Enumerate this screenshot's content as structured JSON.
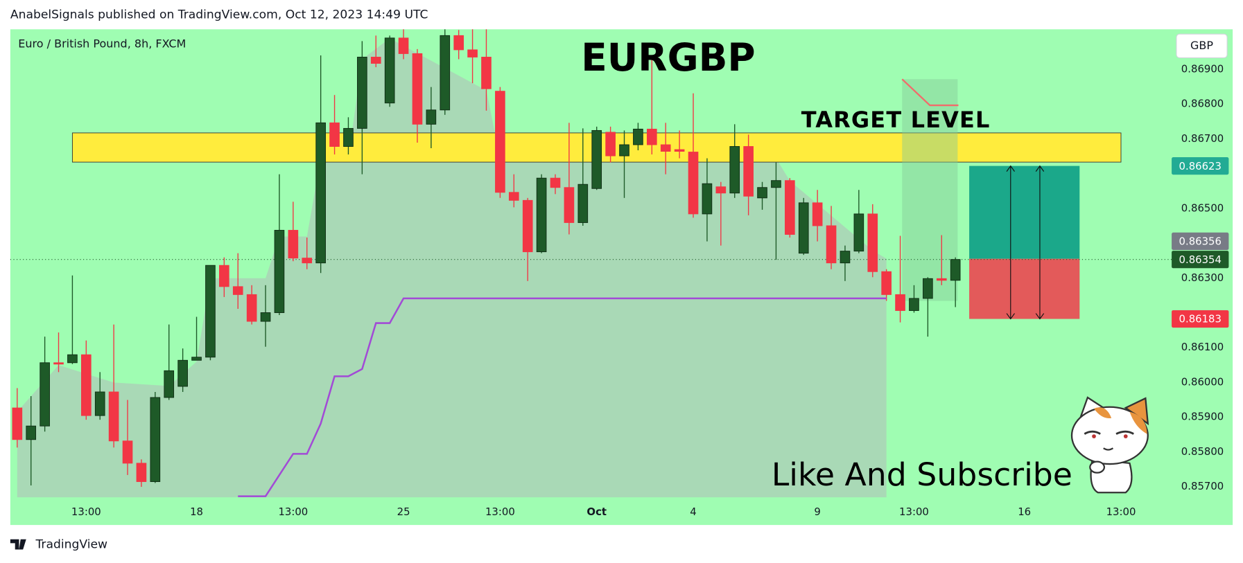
{
  "header": "AnabelSignals published on TradingView.com, Oct 12, 2023 14:49 UTC",
  "footer": "TradingView",
  "chart_data": {
    "type": "candlestick",
    "title": "EURGBP",
    "subtitle": "Euro / British Pound, 8h, FXCM",
    "currency": "GBP",
    "annotations": [
      "TARGET LEVEL",
      "Like And Subscribe"
    ],
    "categories": [
      null,
      null,
      null,
      null,
      null,
      "13:00",
      null,
      null,
      null,
      null,
      null,
      null,
      null,
      "18",
      null,
      null,
      null,
      null,
      null,
      null,
      "13:00",
      null,
      null,
      null,
      null,
      null,
      null,
      null,
      "25",
      null,
      null,
      null,
      null,
      null,
      null,
      "13:00",
      null,
      null,
      null,
      null,
      null,
      null,
      "Oct",
      null,
      null,
      null,
      null,
      null,
      null,
      "4",
      null,
      null,
      null,
      null,
      null,
      null,
      null,
      null,
      "9",
      null,
      null,
      null,
      null,
      null,
      null,
      "13:00",
      null,
      null,
      null,
      null,
      null,
      null,
      null,
      "16",
      null,
      null,
      null,
      null,
      null,
      null,
      "13:00",
      null,
      null,
      null
    ],
    "open": [
      0.85927,
      0.85836,
      0.85875,
      0.86057,
      0.86057,
      0.8608,
      0.85905,
      0.85973,
      0.85832,
      0.85768,
      0.85715,
      0.85957,
      0.85989,
      0.86064,
      0.86073,
      0.86337,
      0.86276,
      0.86253,
      0.86176,
      0.86201,
      0.86438,
      0.86358,
      0.86344,
      0.86747,
      0.86679,
      0.86731,
      0.86936,
      0.86804,
      0.86991,
      0.86946,
      0.86743,
      0.86784,
      0.86998,
      0.86957,
      0.86936,
      0.86838,
      0.86547,
      0.86524,
      0.86376,
      0.86588,
      0.86561,
      0.8646,
      0.86558,
      0.8672,
      0.86652,
      0.86684,
      0.86729,
      0.86684,
      0.8667,
      0.86663,
      0.86485,
      0.86563,
      0.86545,
      0.86679,
      0.86531,
      0.86561,
      0.86581,
      0.86372,
      0.86517,
      0.86451,
      0.86344,
      0.86378,
      0.86485,
      0.86319,
      0.86253,
      0.86207,
      0.86242,
      0.86299,
      0.86294,
      null,
      null,
      null,
      null,
      null,
      null,
      null,
      null,
      null,
      null,
      null,
      null,
      null,
      null,
      null
    ],
    "high": [
      0.85984,
      0.85961,
      0.86132,
      0.86144,
      0.86308,
      0.86121,
      0.8603,
      0.86167,
      0.8595,
      0.85779,
      0.85973,
      0.86167,
      0.86098,
      0.86189,
      0.86337,
      0.8636,
      0.86372,
      0.8628,
      0.8628,
      0.86599,
      0.8652,
      0.86417,
      0.86941,
      0.86827,
      0.86763,
      0.86982,
      0.86998,
      0.86998,
      0.87016,
      0.86959,
      0.8685,
      0.87016,
      0.87014,
      0.87016,
      0.87016,
      0.8685,
      0.86599,
      0.86531,
      0.86599,
      0.86599,
      0.86747,
      0.86731,
      0.86736,
      0.86736,
      0.86725,
      0.86747,
      0.86936,
      0.86747,
      0.86725,
      0.86832,
      0.86645,
      0.86577,
      0.86743,
      0.86713,
      0.86577,
      0.86633,
      0.86588,
      0.86531,
      0.86554,
      0.86508,
      0.86394,
      0.86554,
      0.86513,
      0.86326,
      0.86422,
      0.8628,
      0.86303,
      0.86424,
      0.8636,
      null,
      null,
      null,
      null,
      null,
      null,
      null,
      null,
      null,
      null,
      null,
      null,
      null,
      null,
      null
    ],
    "low": [
      0.85813,
      0.85704,
      0.85859,
      0.8603,
      0.86053,
      0.85893,
      0.85893,
      0.85813,
      0.85734,
      0.857,
      0.85711,
      0.8595,
      0.85973,
      0.86064,
      0.86064,
      0.86246,
      0.86212,
      0.86167,
      0.86103,
      0.86194,
      0.86349,
      0.86326,
      0.86315,
      0.86656,
      0.86656,
      0.86599,
      0.86907,
      0.86793,
      0.8693,
      0.8669,
      0.86674,
      0.8677,
      0.8693,
      0.86861,
      0.86782,
      0.86531,
      0.86504,
      0.86292,
      0.86372,
      0.86542,
      0.86426,
      0.86451,
      0.86554,
      0.86633,
      0.86531,
      0.86668,
      0.86656,
      0.86599,
      0.86645,
      0.86474,
      0.86406,
      0.86394,
      0.86531,
      0.86481,
      0.86497,
      0.86353,
      0.86417,
      0.86367,
      0.86406,
      0.86326,
      0.86292,
      0.86372,
      0.86303,
      0.86235,
      0.86173,
      0.86201,
      0.86132,
      0.8628,
      0.86217,
      null,
      null,
      null,
      null,
      null,
      null,
      null,
      null,
      null,
      null,
      null,
      null,
      null,
      null,
      null
    ],
    "close": [
      0.85836,
      0.85875,
      0.86057,
      0.86053,
      0.8608,
      0.85905,
      0.85973,
      0.85832,
      0.85768,
      0.85715,
      0.85957,
      0.86034,
      0.86064,
      0.86073,
      0.86337,
      0.86276,
      0.86253,
      0.86176,
      0.86201,
      0.86438,
      0.86358,
      0.86344,
      0.86747,
      0.86679,
      0.86731,
      0.86936,
      0.86918,
      0.86991,
      0.86946,
      0.86743,
      0.86784,
      0.86998,
      0.86957,
      0.86936,
      0.86845,
      0.86547,
      0.86524,
      0.86376,
      0.86588,
      0.86561,
      0.8646,
      0.8657,
      0.86725,
      0.86652,
      0.86684,
      0.86729,
      0.86684,
      0.86665,
      0.86665,
      0.86485,
      0.86572,
      0.86545,
      0.86679,
      0.86536,
      0.86561,
      0.86581,
      0.86426,
      0.86517,
      0.86451,
      0.86344,
      0.86378,
      0.86485,
      0.86319,
      0.86253,
      0.86207,
      0.86242,
      0.86299,
      0.86294,
      0.86354,
      null,
      null,
      null,
      null,
      null,
      null,
      null,
      null,
      null,
      null,
      null,
      null,
      null,
      null,
      null
    ],
    "up_color": "#1e5a28",
    "down_color": "#f23645",
    "ylim": [
      0.8567,
      0.87016
    ],
    "yticks": [
      {
        "value": 0.857,
        "label": "0.85700"
      },
      {
        "value": 0.858,
        "label": "0.85800"
      },
      {
        "value": 0.859,
        "label": "0.85900"
      },
      {
        "value": 0.86,
        "label": "0.86000"
      },
      {
        "value": 0.861,
        "label": "0.86100"
      },
      {
        "value": 0.863,
        "label": "0.86300"
      },
      {
        "value": 0.865,
        "label": "0.86500"
      },
      {
        "value": 0.867,
        "label": "0.86700"
      },
      {
        "value": 0.868,
        "label": "0.86800"
      },
      {
        "value": 0.869,
        "label": "0.86900"
      }
    ],
    "area": {
      "color": "#a9d9b6",
      "x": [
        0,
        3,
        7,
        11,
        13,
        14,
        18,
        19,
        21,
        22,
        24,
        25,
        27,
        34,
        35,
        55,
        56,
        62,
        63
      ],
      "values": [
        0.85916,
        0.8605,
        0.86,
        0.8599,
        0.8606,
        0.863,
        0.863,
        0.8642,
        0.8642,
        0.86645,
        0.86645,
        0.8693,
        0.8699,
        0.8684,
        0.86645,
        0.86645,
        0.8658,
        0.8638,
        0.86356
      ]
    },
    "stop_line": {
      "color": "#a24ad6",
      "values": [
        null,
        null,
        null,
        null,
        null,
        null,
        null,
        null,
        null,
        null,
        null,
        null,
        null,
        null,
        null,
        null,
        0.85673,
        0.85673,
        0.85673,
        0.85734,
        0.85795,
        0.85795,
        0.85882,
        0.86018,
        0.86018,
        0.86039,
        0.86171,
        0.86171,
        0.86242,
        0.86242,
        0.86242,
        0.86242,
        0.86242,
        0.86242,
        0.86242,
        0.86242,
        0.86242,
        0.86242,
        0.86242,
        0.86242,
        0.86242,
        0.86242,
        0.86242,
        0.86242,
        0.86242,
        0.86242,
        0.86242,
        0.86242,
        0.86242,
        0.86242,
        0.86242,
        0.86242,
        0.86242,
        0.86242,
        0.86242,
        0.86242,
        0.86242,
        0.86242,
        0.86242,
        0.86242,
        0.86242,
        0.86242,
        0.86242,
        0.86242,
        null,
        null,
        null,
        null,
        null,
        null,
        null,
        null,
        null,
        null,
        null,
        null,
        null,
        null,
        null,
        null,
        null,
        null,
        null,
        null
      ]
    },
    "target_zone": {
      "color": "#ffec3d",
      "x": [
        4,
        80
      ],
      "y": [
        0.86634,
        0.86718
      ]
    },
    "position": {
      "x": [
        69,
        77
      ],
      "entry": 0.86356,
      "target": 0.86623,
      "stop": 0.86183,
      "profit_color": "#1ba88a",
      "loss_color": "#e35a5a"
    },
    "price_labels": [
      {
        "value": 0.86623,
        "label": "0.86623",
        "color": "#22ab94"
      },
      {
        "value": 0.86356,
        "label": "0.86356",
        "color": "#787b86"
      },
      {
        "value": 0.86354,
        "label": "0.86354",
        "color": "#1e5a28"
      },
      {
        "value": 0.86183,
        "label": "0.86183",
        "color": "#f23645"
      }
    ]
  }
}
